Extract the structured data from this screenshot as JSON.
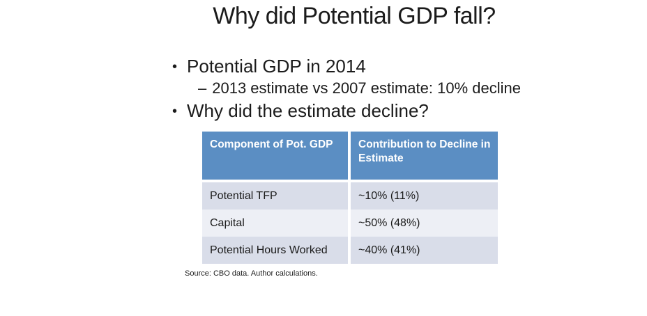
{
  "slide": {
    "title": "Why did Potential GDP fall?",
    "bullets": [
      {
        "level": 1,
        "marker": "•",
        "text": "Potential GDP in 2014"
      },
      {
        "level": 2,
        "marker": "–",
        "text": "2013 estimate vs 2007 estimate: 10% decline"
      },
      {
        "level": 1,
        "marker": "•",
        "text": "Why did the estimate decline?"
      }
    ],
    "table": {
      "headers": [
        "Component of Pot. GDP",
        "Contribution to Decline in Estimate"
      ],
      "rows": [
        [
          "Potential TFP",
          "~10% (11%)"
        ],
        [
          "Capital",
          "~50% (48%)"
        ],
        [
          "Potential Hours Worked",
          "~40% (41%)"
        ]
      ]
    },
    "source_note": "Source: CBO data. Author calculations.",
    "colors": {
      "header_fill": "#5B8EC3",
      "header_text": "#FFFFFF",
      "band_dark": "#D9DDE9",
      "band_light": "#EDEFF5",
      "text": "#1B1B1B"
    }
  }
}
